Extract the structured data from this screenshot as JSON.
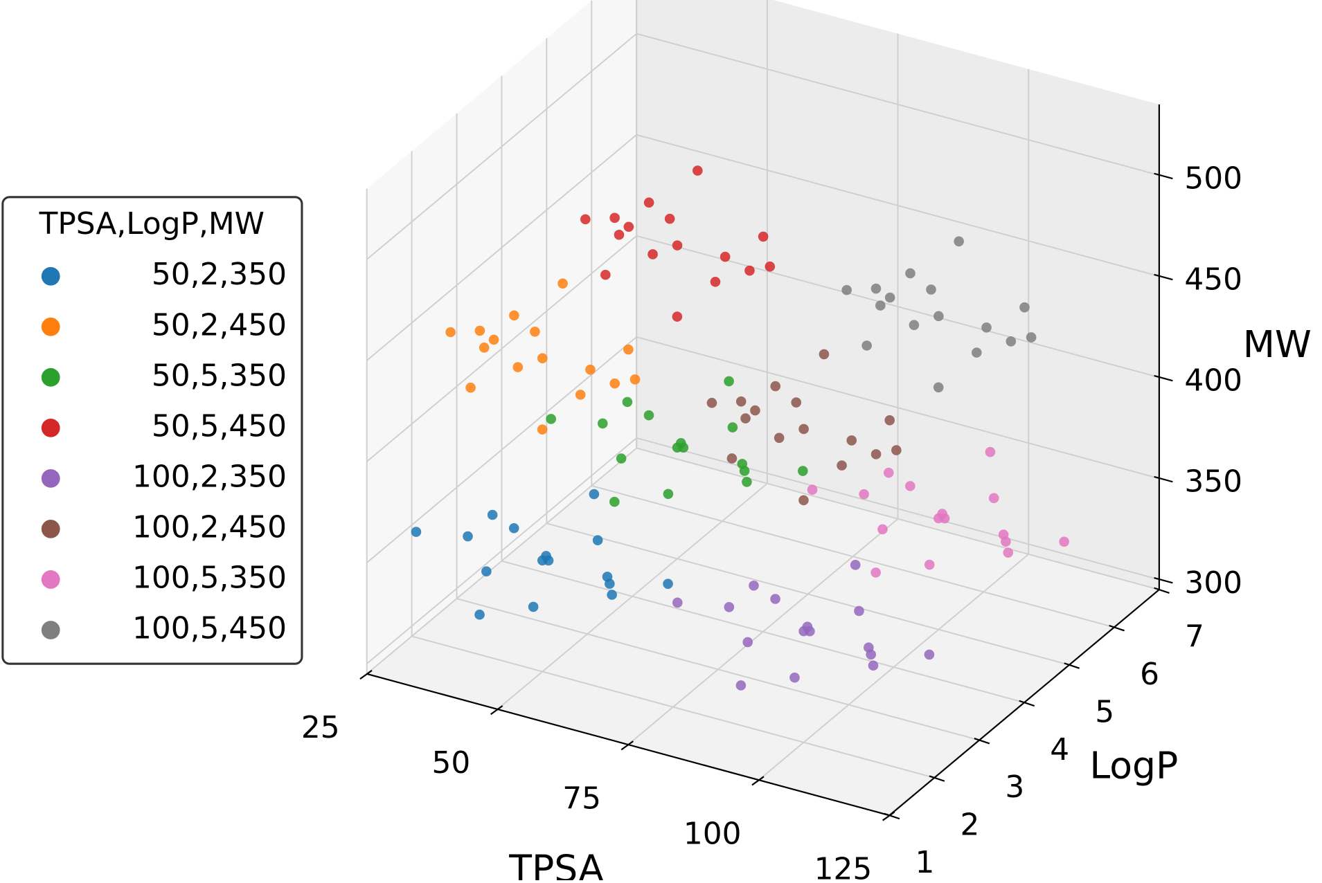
{
  "chart_data": {
    "type": "scatter3d",
    "xlabel": "TPSA",
    "ylabel": "LogP",
    "zlabel": "MW",
    "xlim": [
      25,
      125
    ],
    "ylim": [
      1,
      7
    ],
    "zlim": [
      295,
      535
    ],
    "xticks": [
      25,
      50,
      75,
      100,
      125
    ],
    "yticks": [
      1,
      2,
      3,
      4,
      5,
      6,
      7
    ],
    "zticks": [
      300,
      350,
      400,
      450,
      500
    ],
    "grid": true,
    "legend_title": "TPSA,LogP,MW",
    "legend": "left",
    "series": [
      {
        "name": "50,2,350",
        "color": "#1f77b4",
        "x": [
          50,
          58,
          41,
          55,
          46,
          62,
          37,
          53,
          44,
          65,
          34,
          59,
          48,
          68,
          31,
          56
        ],
        "y": [
          2,
          2.3,
          1.8,
          1.5,
          2.6,
          2.1,
          2.4,
          2.8,
          1.3,
          1.7,
          2.2,
          2.5,
          1.6,
          2.7,
          1.4,
          1.1
        ],
        "z": [
          350,
          360,
          342,
          365,
          336,
          345,
          356,
          370,
          332,
          358,
          347,
          330,
          372,
          338,
          362,
          348
        ]
      },
      {
        "name": "50,2,450",
        "color": "#ff7f0e",
        "x": [
          50,
          42,
          59,
          45,
          54,
          38,
          63,
          47,
          56,
          35,
          66,
          41,
          52,
          32,
          69,
          44
        ],
        "y": [
          2,
          2.3,
          1.8,
          1.5,
          2.6,
          2.1,
          2.4,
          2.8,
          1.3,
          1.7,
          2.2,
          2.5,
          1.6,
          2.7,
          1.4,
          1.1
        ],
        "z": [
          450,
          460,
          442,
          465,
          436,
          445,
          456,
          470,
          432,
          458,
          447,
          430,
          472,
          438,
          462,
          448
        ]
      },
      {
        "name": "50,5,350",
        "color": "#2ca02c",
        "x": [
          50,
          58,
          41,
          55,
          46,
          62,
          37,
          53,
          44,
          65,
          34,
          59,
          48,
          68,
          31,
          56
        ],
        "y": [
          5,
          5.3,
          4.8,
          4.5,
          5.6,
          5.1,
          5.4,
          5.8,
          4.3,
          4.7,
          5.2,
          5.5,
          4.6,
          5.7,
          4.4,
          4.1
        ],
        "z": [
          350,
          360,
          342,
          365,
          336,
          345,
          356,
          370,
          332,
          358,
          347,
          330,
          372,
          338,
          362,
          348
        ]
      },
      {
        "name": "50,5,450",
        "color": "#d62728",
        "x": [
          50,
          42,
          59,
          45,
          54,
          38,
          63,
          47,
          56,
          35,
          66,
          41,
          52,
          32,
          69,
          44
        ],
        "y": [
          5,
          5.3,
          4.8,
          4.5,
          5.6,
          5.1,
          5.4,
          5.8,
          4.3,
          4.7,
          5.2,
          5.5,
          4.6,
          5.7,
          4.4,
          4.1
        ],
        "z": [
          450,
          460,
          442,
          465,
          436,
          445,
          456,
          470,
          432,
          458,
          447,
          430,
          472,
          438,
          462,
          448
        ]
      },
      {
        "name": "100,2,350",
        "color": "#9467bd",
        "x": [
          100,
          108,
          91,
          105,
          96,
          112,
          87,
          103,
          94,
          115,
          84,
          109,
          98,
          118,
          81,
          106
        ],
        "y": [
          2,
          2.3,
          1.8,
          1.5,
          2.6,
          2.1,
          2.4,
          2.8,
          1.3,
          1.7,
          2.2,
          2.5,
          1.6,
          2.7,
          1.4,
          1.1
        ],
        "z": [
          350,
          360,
          342,
          365,
          336,
          345,
          356,
          370,
          332,
          358,
          347,
          330,
          372,
          338,
          362,
          348
        ]
      },
      {
        "name": "100,2,450",
        "color": "#8c564b",
        "x": [
          100,
          92,
          109,
          95,
          104,
          88,
          113,
          97,
          106,
          85,
          116,
          91,
          102,
          82,
          119,
          94
        ],
        "y": [
          2,
          2.3,
          1.8,
          1.5,
          2.6,
          2.1,
          2.4,
          2.8,
          1.3,
          1.7,
          2.2,
          2.5,
          1.6,
          2.7,
          1.4,
          1.1
        ],
        "z": [
          450,
          460,
          442,
          465,
          436,
          445,
          456,
          470,
          432,
          458,
          447,
          430,
          472,
          438,
          462,
          448
        ]
      },
      {
        "name": "100,5,350",
        "color": "#e377c2",
        "x": [
          100,
          108,
          91,
          105,
          96,
          112,
          87,
          103,
          94,
          115,
          84,
          109,
          98,
          118,
          81,
          106
        ],
        "y": [
          5,
          5.3,
          4.8,
          4.5,
          5.6,
          5.1,
          5.4,
          5.8,
          4.3,
          4.7,
          5.2,
          5.5,
          4.6,
          5.7,
          4.4,
          4.1
        ],
        "z": [
          350,
          360,
          342,
          365,
          336,
          345,
          356,
          370,
          332,
          358,
          347,
          330,
          372,
          338,
          362,
          348
        ]
      },
      {
        "name": "100,5,450",
        "color": "#7f7f7f",
        "x": [
          100,
          92,
          109,
          95,
          104,
          88,
          113,
          97,
          106,
          85,
          116,
          91,
          102,
          82,
          119,
          94
        ],
        "y": [
          5,
          5.3,
          4.8,
          4.5,
          5.6,
          5.1,
          5.4,
          5.8,
          4.3,
          4.7,
          5.2,
          5.5,
          4.6,
          5.7,
          4.4,
          4.1
        ],
        "z": [
          450,
          460,
          442,
          465,
          436,
          445,
          456,
          470,
          432,
          458,
          447,
          430,
          472,
          438,
          462,
          448
        ]
      }
    ]
  }
}
